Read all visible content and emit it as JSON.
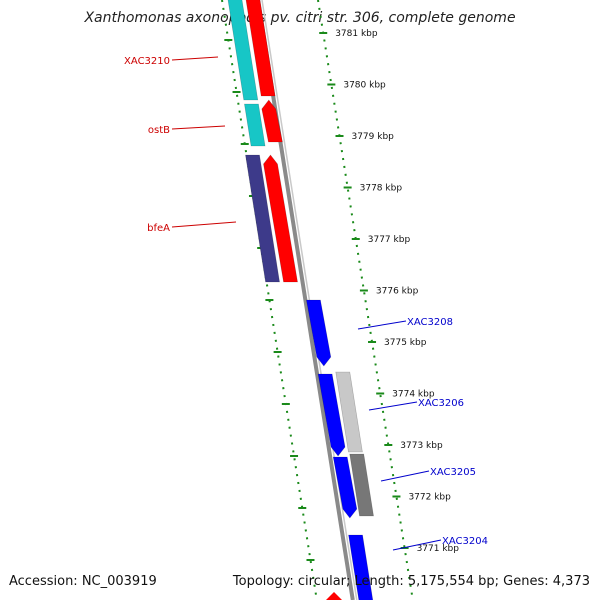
{
  "title": "Xanthomonas axonopodis pv. citri str. 306, complete genome",
  "footer": {
    "accession": "Accession: NC_003919",
    "summary": "Topology: circular; Length: 5,175,554 bp; Genes: 4,373"
  },
  "colors": {
    "teal": "#17c6c6",
    "red": "#ff0000",
    "navy": "#3d3a8a",
    "blue": "#0000ff",
    "light_gray": "#c8c8c8",
    "dark_gray": "#777777",
    "ruler_green": "#1a8a1a",
    "backbone": "#8a8a8a"
  },
  "ruler_ticks": [
    "3781 kbp",
    "3780 kbp",
    "3779 kbp",
    "3778 kbp",
    "3777 kbp",
    "3776 kbp",
    "3775 kbp",
    "3774 kbp",
    "3773 kbp",
    "3772 kbp",
    "3771 kbp"
  ],
  "left_labels": [
    {
      "name": "XAC3210",
      "color": "#cc0000"
    },
    {
      "name": "ostB",
      "color": "#cc0000"
    },
    {
      "name": "bfeA",
      "color": "#cc0000"
    }
  ],
  "right_labels": [
    {
      "name": "XAC3208",
      "color": "#0000cc"
    },
    {
      "name": "XAC3206",
      "color": "#0000cc"
    },
    {
      "name": "XAC3205",
      "color": "#0000cc"
    },
    {
      "name": "XAC3204",
      "color": "#0000cc"
    }
  ]
}
